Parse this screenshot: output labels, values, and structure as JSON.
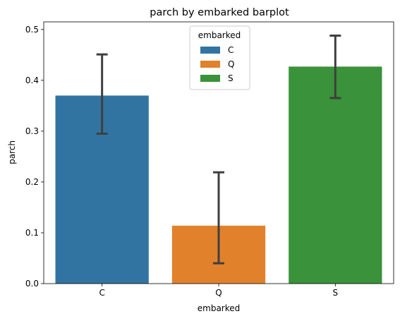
{
  "chart_data": {
    "type": "bar",
    "title": "parch by embarked barplot",
    "xlabel": "embarked",
    "ylabel": "parch",
    "categories": [
      "C",
      "Q",
      "S"
    ],
    "values": [
      0.37,
      0.114,
      0.427
    ],
    "error_bars": [
      {
        "low": 0.295,
        "high": 0.451
      },
      {
        "low": 0.04,
        "high": 0.219
      },
      {
        "low": 0.365,
        "high": 0.488
      }
    ],
    "colors": [
      "#3274a1",
      "#e1812c",
      "#3a923a"
    ],
    "error_color": "#3f3f3f",
    "ylim": [
      0,
      0.515
    ],
    "yticks": [
      "0.0",
      "0.1",
      "0.2",
      "0.3",
      "0.4",
      "0.5"
    ],
    "ytick_values": [
      0,
      0.1,
      0.2,
      0.3,
      0.4,
      0.5
    ],
    "grid": false,
    "legend": {
      "title": "embarked",
      "placement": "top-center",
      "items": [
        "C",
        "Q",
        "S"
      ]
    }
  }
}
